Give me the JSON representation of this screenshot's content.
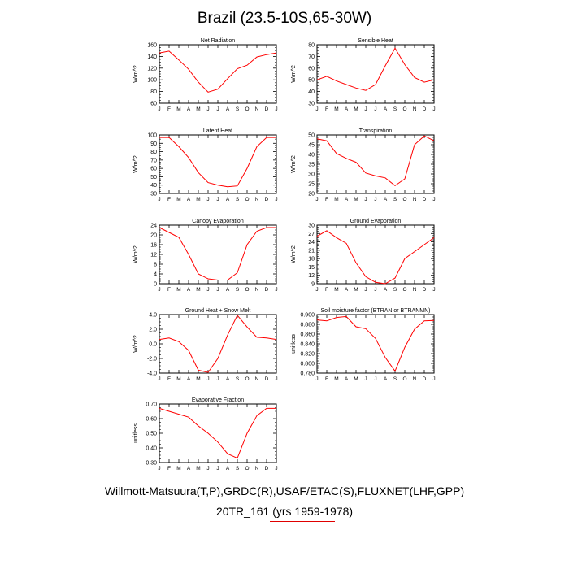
{
  "title": "Brazil (23.5-10S,65-30W)",
  "footer": {
    "line1": "Willmott-Matsuura(T,P),GRDC(R),USAF/ETAC(S),FLUXNET(LHF,GPP)",
    "line2": "20TR_161 (yrs 1959-1978)"
  },
  "colors": {
    "line": "#ff0000",
    "axis": "#000000"
  },
  "chart_data": [
    {
      "type": "line",
      "title": "Net Radiation",
      "ylabel": "W/m^2",
      "categories": [
        "J",
        "F",
        "M",
        "A",
        "M",
        "J",
        "J",
        "A",
        "S",
        "O",
        "N",
        "D",
        "J"
      ],
      "ylim": [
        60,
        160
      ],
      "yticks": [
        "60",
        "80",
        "100",
        "120",
        "140",
        "160"
      ],
      "values": [
        146,
        149,
        134,
        118,
        96,
        79,
        84,
        102,
        119,
        125,
        139,
        143,
        146
      ]
    },
    {
      "type": "line",
      "title": "Sensible Heat",
      "ylabel": "W/m^2",
      "categories": [
        "J",
        "F",
        "M",
        "A",
        "M",
        "J",
        "J",
        "A",
        "S",
        "O",
        "N",
        "D",
        "J"
      ],
      "ylim": [
        30,
        80
      ],
      "yticks": [
        "30",
        "40",
        "50",
        "60",
        "70",
        "80"
      ],
      "values": [
        50,
        53,
        49,
        46,
        43,
        41,
        46,
        62,
        77,
        63,
        52,
        48,
        50
      ]
    },
    {
      "type": "line",
      "title": "Latent Heat",
      "ylabel": "W/m^2",
      "categories": [
        "J",
        "F",
        "M",
        "A",
        "M",
        "J",
        "J",
        "A",
        "S",
        "O",
        "N",
        "D",
        "J"
      ],
      "ylim": [
        30,
        100
      ],
      "yticks": [
        "30",
        "40",
        "50",
        "60",
        "70",
        "80",
        "90",
        "100"
      ],
      "values": [
        97,
        97,
        86,
        73,
        55,
        43,
        40,
        38,
        39,
        60,
        86,
        97,
        97
      ]
    },
    {
      "type": "line",
      "title": "Transpiration",
      "ylabel": "W/m^2",
      "categories": [
        "J",
        "F",
        "M",
        "A",
        "M",
        "J",
        "J",
        "A",
        "S",
        "O",
        "N",
        "D",
        "J"
      ],
      "ylim": [
        20,
        50
      ],
      "yticks": [
        "20",
        "25",
        "30",
        "35",
        "40",
        "45",
        "50"
      ],
      "values": [
        48,
        47,
        40.5,
        38,
        36,
        30.5,
        29,
        28,
        24,
        27.5,
        45,
        49.5,
        47
      ]
    },
    {
      "type": "line",
      "title": "Canopy Evaporation",
      "ylabel": "W/m^2",
      "categories": [
        "J",
        "F",
        "M",
        "A",
        "M",
        "J",
        "J",
        "A",
        "S",
        "O",
        "N",
        "D",
        "J"
      ],
      "ylim": [
        0,
        24
      ],
      "yticks": [
        "0",
        "4",
        "8",
        "12",
        "16",
        "20",
        "24"
      ],
      "values": [
        23,
        21,
        19,
        12,
        4,
        2,
        1.5,
        1.5,
        4.5,
        16,
        21.5,
        23,
        23
      ]
    },
    {
      "type": "line",
      "title": "Ground Evaporation",
      "ylabel": "W/m^2",
      "categories": [
        "J",
        "F",
        "M",
        "A",
        "M",
        "J",
        "J",
        "A",
        "S",
        "O",
        "N",
        "D",
        "J"
      ],
      "ylim": [
        9,
        30
      ],
      "yticks": [
        "9",
        "12",
        "15",
        "18",
        "21",
        "24",
        "27",
        "30"
      ],
      "values": [
        26,
        28,
        25.5,
        23.5,
        16.5,
        11.5,
        9.5,
        9,
        11,
        18,
        20.5,
        23,
        25.5
      ]
    },
    {
      "type": "line",
      "title": "Ground Heat + Snow Melt",
      "ylabel": "W/m^2",
      "categories": [
        "J",
        "F",
        "M",
        "A",
        "M",
        "J",
        "J",
        "A",
        "S",
        "O",
        "N",
        "D",
        "J"
      ],
      "ylim": [
        -4,
        4
      ],
      "yticks": [
        "-4.0",
        "-2.0",
        "0.0",
        "2.0",
        "4.0"
      ],
      "values": [
        0.6,
        0.8,
        0.3,
        -0.9,
        -3.6,
        -3.9,
        -2.0,
        1.2,
        3.9,
        2.3,
        0.9,
        0.8,
        0.6
      ]
    },
    {
      "type": "line",
      "title": "Soil moisture factor (BTRAN or BTRANMN)",
      "ylabel": "unitless",
      "categories": [
        "J",
        "F",
        "M",
        "A",
        "M",
        "J",
        "J",
        "A",
        "S",
        "O",
        "N",
        "D",
        "J"
      ],
      "ylim": [
        0.78,
        0.9
      ],
      "yticks": [
        "0.780",
        "0.800",
        "0.820",
        "0.840",
        "0.860",
        "0.880",
        "0.900"
      ],
      "values": [
        0.889,
        0.887,
        0.894,
        0.896,
        0.875,
        0.871,
        0.851,
        0.812,
        0.784,
        0.833,
        0.87,
        0.887,
        0.888
      ]
    },
    {
      "type": "line",
      "title": "Evaporative Fraction",
      "ylabel": "unitless",
      "categories": [
        "J",
        "F",
        "M",
        "A",
        "M",
        "J",
        "J",
        "A",
        "S",
        "O",
        "N",
        "D",
        "J"
      ],
      "ylim": [
        0.3,
        0.7
      ],
      "yticks": [
        "0.30",
        "0.40",
        "0.50",
        "0.60",
        "0.70"
      ],
      "values": [
        0.67,
        0.65,
        0.63,
        0.61,
        0.55,
        0.5,
        0.44,
        0.36,
        0.33,
        0.5,
        0.62,
        0.67,
        0.67
      ]
    }
  ]
}
